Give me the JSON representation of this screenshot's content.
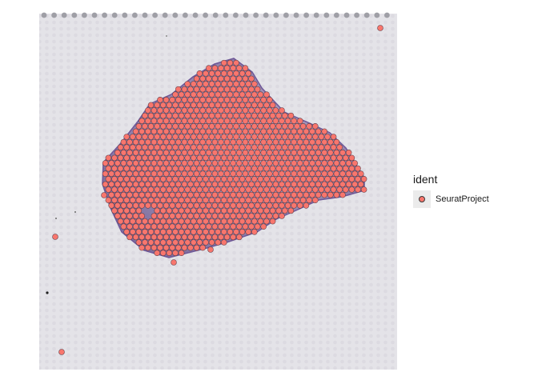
{
  "chart_data": {
    "type": "scatter",
    "title": "",
    "xlabel": "",
    "ylabel": "",
    "grid": false,
    "legend_position": "right",
    "legend": {
      "title": "ident",
      "entries": [
        {
          "label": "SeuratProject",
          "color": "#F8766D"
        }
      ]
    },
    "series": [
      {
        "name": "SeuratProject",
        "color": "#F8766D"
      }
    ]
  }
}
